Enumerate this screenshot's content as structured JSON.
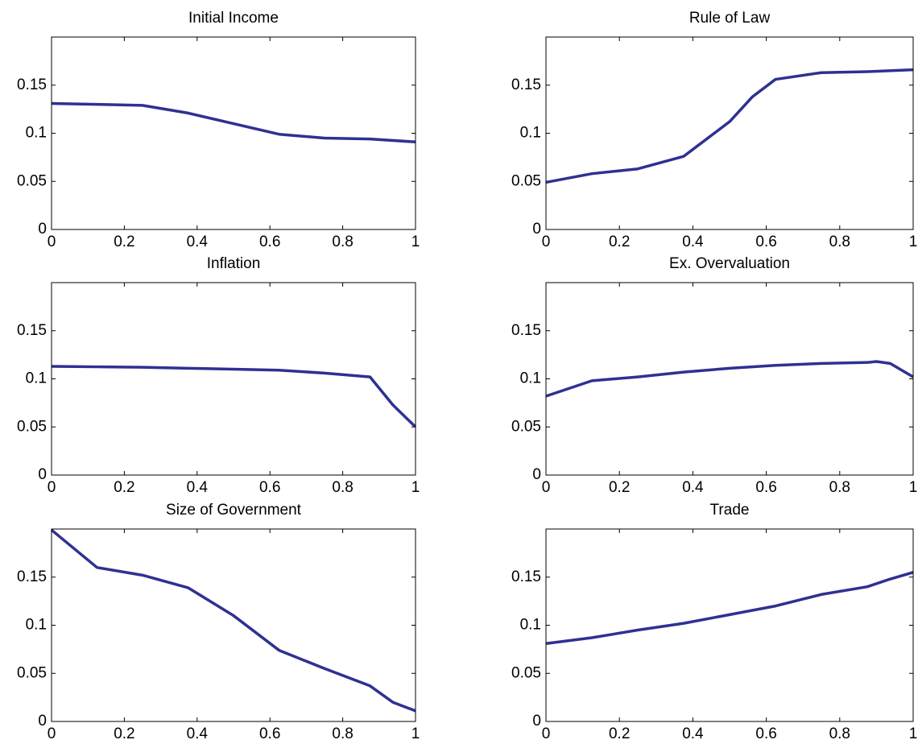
{
  "chart_data": [
    {
      "type": "line",
      "title": "Initial Income",
      "color": "#2e3192",
      "x": [
        0,
        0.125,
        0.25,
        0.375,
        0.5,
        0.625,
        0.75,
        0.875,
        1
      ],
      "values": [
        0.131,
        0.13,
        0.129,
        0.121,
        0.11,
        0.099,
        0.095,
        0.094,
        0.091
      ],
      "xlim": [
        0,
        1
      ],
      "ylim": [
        0,
        0.2
      ],
      "xticks": [
        0,
        0.2,
        0.4,
        0.6,
        0.8,
        1
      ],
      "yticks": [
        0,
        0.05,
        0.1,
        0.15
      ]
    },
    {
      "type": "line",
      "title": "Rule of Law",
      "color": "#2e3192",
      "x": [
        0,
        0.125,
        0.25,
        0.375,
        0.5,
        0.5625,
        0.625,
        0.75,
        0.875,
        1
      ],
      "values": [
        0.049,
        0.058,
        0.063,
        0.076,
        0.112,
        0.138,
        0.156,
        0.163,
        0.164,
        0.166
      ],
      "xlim": [
        0,
        1
      ],
      "ylim": [
        0,
        0.2
      ],
      "xticks": [
        0,
        0.2,
        0.4,
        0.6,
        0.8,
        1
      ],
      "yticks": [
        0,
        0.05,
        0.1,
        0.15
      ]
    },
    {
      "type": "line",
      "title": "Inflation",
      "color": "#2e3192",
      "x": [
        0,
        0.125,
        0.25,
        0.375,
        0.5,
        0.625,
        0.75,
        0.875,
        0.9375,
        1
      ],
      "values": [
        0.113,
        0.1125,
        0.112,
        0.111,
        0.11,
        0.109,
        0.106,
        0.102,
        0.073,
        0.05
      ],
      "xlim": [
        0,
        1
      ],
      "ylim": [
        0,
        0.2
      ],
      "xticks": [
        0,
        0.2,
        0.4,
        0.6,
        0.8,
        1
      ],
      "yticks": [
        0,
        0.05,
        0.1,
        0.15
      ]
    },
    {
      "type": "line",
      "title": "Ex. Overvaluation",
      "color": "#2e3192",
      "x": [
        0,
        0.125,
        0.25,
        0.375,
        0.5,
        0.625,
        0.75,
        0.875,
        0.9,
        0.9375,
        1
      ],
      "values": [
        0.082,
        0.098,
        0.102,
        0.107,
        0.111,
        0.114,
        0.116,
        0.117,
        0.118,
        0.116,
        0.102
      ],
      "xlim": [
        0,
        1
      ],
      "ylim": [
        0,
        0.2
      ],
      "xticks": [
        0,
        0.2,
        0.4,
        0.6,
        0.8,
        1
      ],
      "yticks": [
        0,
        0.05,
        0.1,
        0.15
      ]
    },
    {
      "type": "line",
      "title": "Size of Government",
      "color": "#2e3192",
      "x": [
        0,
        0.125,
        0.25,
        0.375,
        0.5,
        0.625,
        0.75,
        0.875,
        0.9375,
        1
      ],
      "values": [
        0.199,
        0.16,
        0.152,
        0.139,
        0.11,
        0.074,
        0.055,
        0.037,
        0.02,
        0.011
      ],
      "xlim": [
        0,
        1
      ],
      "ylim": [
        0,
        0.2
      ],
      "xticks": [
        0,
        0.2,
        0.4,
        0.6,
        0.8,
        1
      ],
      "yticks": [
        0,
        0.05,
        0.1,
        0.15
      ]
    },
    {
      "type": "line",
      "title": "Trade",
      "color": "#2e3192",
      "x": [
        0,
        0.125,
        0.25,
        0.375,
        0.5,
        0.625,
        0.75,
        0.875,
        0.9375,
        1
      ],
      "values": [
        0.081,
        0.087,
        0.095,
        0.102,
        0.111,
        0.12,
        0.132,
        0.14,
        0.148,
        0.155
      ],
      "xlim": [
        0,
        1
      ],
      "ylim": [
        0,
        0.2
      ],
      "xticks": [
        0,
        0.2,
        0.4,
        0.6,
        0.8,
        1
      ],
      "yticks": [
        0,
        0.05,
        0.1,
        0.15
      ]
    }
  ]
}
